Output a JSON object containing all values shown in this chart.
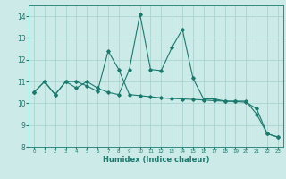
{
  "xlabel": "Humidex (Indice chaleur)",
  "ylabel": "",
  "xlim": [
    -0.5,
    23.5
  ],
  "ylim": [
    8,
    14.5
  ],
  "yticks": [
    8,
    9,
    10,
    11,
    12,
    13,
    14
  ],
  "xticks": [
    0,
    1,
    2,
    3,
    4,
    5,
    6,
    7,
    8,
    9,
    10,
    11,
    12,
    13,
    14,
    15,
    16,
    17,
    18,
    19,
    20,
    21,
    22,
    23
  ],
  "bg_color": "#cceae7",
  "line_color": "#1a7a6e",
  "grid_color": "#aad4d0",
  "line1_x": [
    0,
    1,
    2,
    3,
    4,
    5,
    6,
    7,
    8,
    9,
    10,
    11,
    12,
    13,
    14,
    15,
    16,
    17,
    18,
    19,
    20,
    21,
    22,
    23
  ],
  "line1_y": [
    10.5,
    11.0,
    10.4,
    11.0,
    10.7,
    11.0,
    10.7,
    10.5,
    10.4,
    11.55,
    14.1,
    11.55,
    11.5,
    12.55,
    13.4,
    11.15,
    10.2,
    10.2,
    10.1,
    10.1,
    10.1,
    9.5,
    8.6,
    8.45
  ],
  "line2_x": [
    0,
    1,
    2,
    3,
    4,
    5,
    6,
    7,
    8,
    9,
    10,
    11,
    12,
    13,
    14,
    15,
    16,
    17,
    18,
    19,
    20,
    21,
    22,
    23
  ],
  "line2_y": [
    10.5,
    11.0,
    10.4,
    11.0,
    11.0,
    10.8,
    10.55,
    12.4,
    11.55,
    10.4,
    10.35,
    10.3,
    10.25,
    10.22,
    10.2,
    10.18,
    10.15,
    10.12,
    10.1,
    10.08,
    10.05,
    9.75,
    8.6,
    8.45
  ]
}
